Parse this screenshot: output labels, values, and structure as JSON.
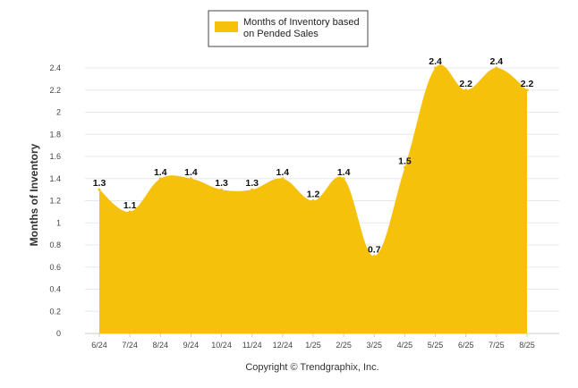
{
  "chart_data": {
    "type": "area",
    "categories": [
      "6/24",
      "7/24",
      "8/24",
      "9/24",
      "10/24",
      "11/24",
      "12/24",
      "1/25",
      "2/25",
      "3/25",
      "4/25",
      "5/25",
      "6/25",
      "7/25",
      "8/25"
    ],
    "series": [
      {
        "name": "Months of Inventory based on Pended Sales",
        "values": [
          1.3,
          1.1,
          1.4,
          1.4,
          1.3,
          1.3,
          1.4,
          1.2,
          1.4,
          0.7,
          1.5,
          2.4,
          2.2,
          2.4,
          2.2
        ],
        "color": "#f5c10b"
      }
    ],
    "ylabel": "Months of Inventory",
    "ylim": [
      0,
      2.4
    ],
    "yticks": [
      "0",
      "0.2",
      "0.4",
      "0.6",
      "0.8",
      "1",
      "1.2",
      "1.4",
      "1.6",
      "1.8",
      "2",
      "2.2",
      "2.4"
    ],
    "grid": true,
    "legend_position": "top-center",
    "legend_lines": [
      "Months of Inventory based",
      "on Pended Sales"
    ],
    "data_labels": true
  },
  "footer": {
    "copyright": "Copyright © Trendgraphix, Inc."
  },
  "colors": {
    "fill": "#f5c10b",
    "grid": "#e8e8e8",
    "axis": "#cccccc"
  }
}
